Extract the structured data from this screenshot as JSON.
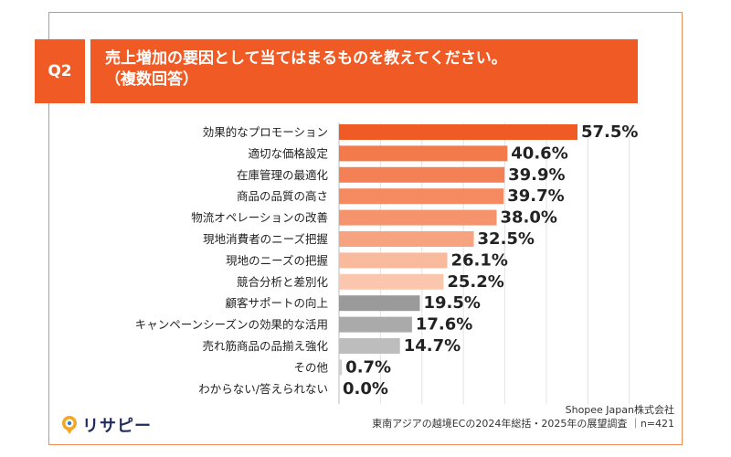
{
  "header": {
    "badge": "Q2",
    "title_line1": "売上増加の要因として当てはまるものを教えてください。",
    "title_line2": "（複数回答）"
  },
  "colors": {
    "accent": "#f05a24",
    "frame": "#f08a55"
  },
  "chart_data": {
    "type": "bar",
    "orientation": "horizontal",
    "categories": [
      "効果的なプロモーション",
      "適切な価格設定",
      "在庫管理の最適化",
      "商品の品質の高さ",
      "物流オペレーションの改善",
      "現地消費者のニーズ把握",
      "現地のニーズの把握",
      "競合分析と差別化",
      "顧客サポートの向上",
      "キャンペーンシーズンの効果的な活用",
      "売れ筋商品の品揃え強化",
      "その他",
      "わからない/答えられない"
    ],
    "values": [
      57.5,
      40.6,
      39.9,
      39.7,
      38.0,
      32.5,
      26.1,
      25.2,
      19.5,
      17.6,
      14.7,
      0.7,
      0.0
    ],
    "value_labels": [
      "57.5%",
      "40.6%",
      "39.9%",
      "39.7%",
      "38.0%",
      "32.5%",
      "26.1%",
      "25.2%",
      "19.5%",
      "17.6%",
      "14.7%",
      "0.7%",
      "0.0%"
    ],
    "bar_colors": [
      "#f05a24",
      "#f37a4b",
      "#f48055",
      "#f58a60",
      "#f5936c",
      "#f7a37f",
      "#f9b99c",
      "#fac7ae",
      "#9a9a9a",
      "#aaaaaa",
      "#bdbdbd",
      "#cfcfcf",
      "#cfcfcf"
    ],
    "xlim": [
      0,
      70
    ],
    "grid": true,
    "xlabel": "",
    "ylabel": ""
  },
  "footer": {
    "logo_text": "リサピー",
    "source_line1": "Shopee Japan株式会社",
    "source_line2": "東南アジアの越境ECの2024年総括・2025年の展望調査 ｜n=421"
  }
}
